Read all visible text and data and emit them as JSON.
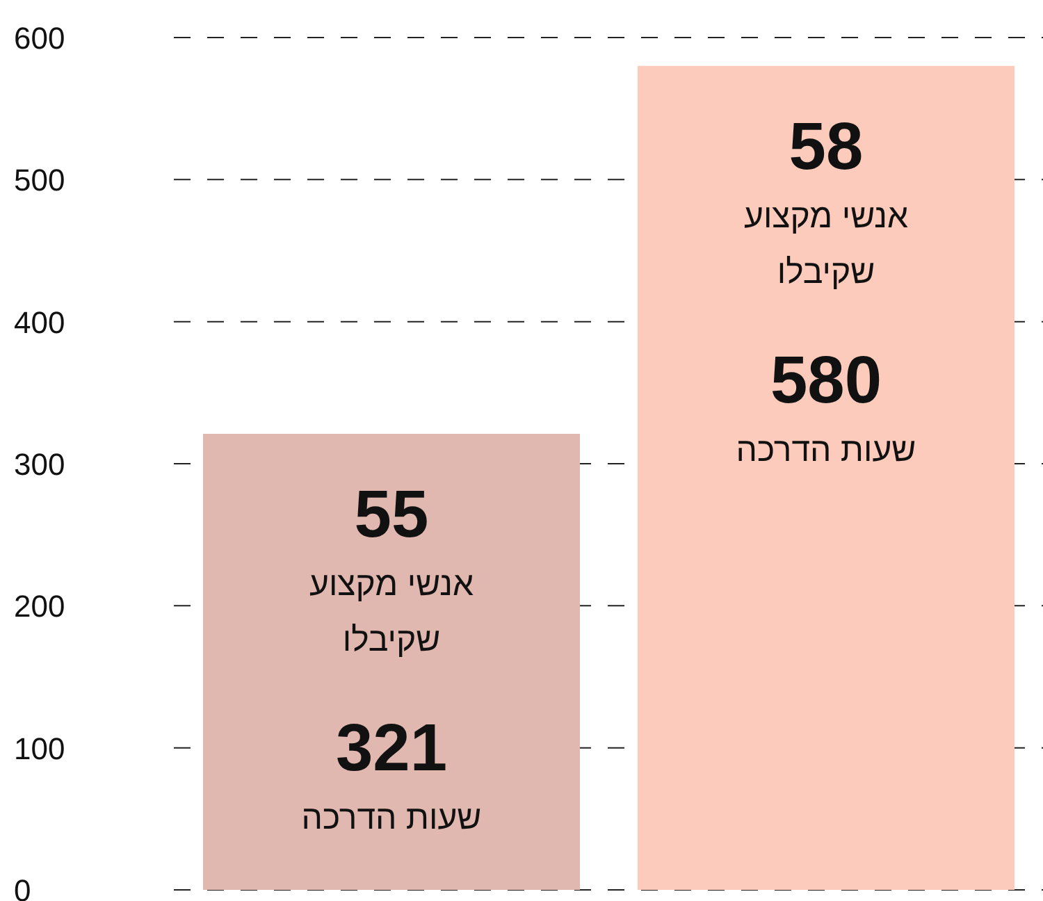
{
  "chart_data": {
    "type": "bar",
    "categories": [
      null,
      null
    ],
    "values": [
      321,
      580
    ],
    "colors": [
      "#e0b8b0",
      "#fdcbbb"
    ],
    "data_labels": true,
    "annotations": [
      "55",
      "אנשי מקצוע שקיבלו",
      "שעות הדרכה",
      "58",
      "אנשי מקצוע שקיבלו",
      "שעות הדרכה"
    ],
    "ylim": [
      0,
      600
    ],
    "yticks": [
      0,
      100,
      200,
      300,
      400,
      500,
      600
    ],
    "grid": "y"
  }
}
